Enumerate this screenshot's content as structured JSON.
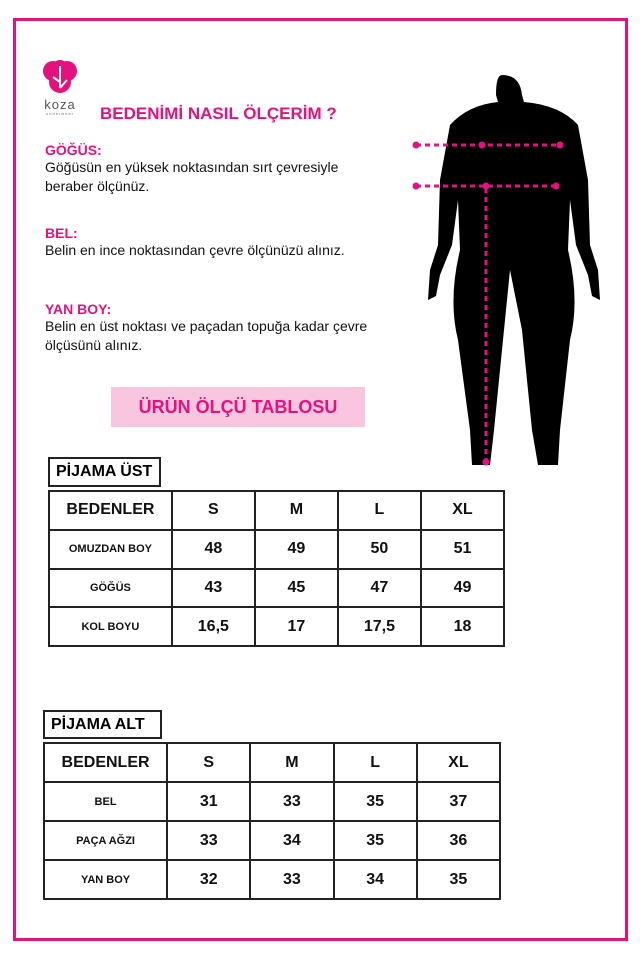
{
  "brand": {
    "name": "koza",
    "tagline": "underwear",
    "color": "#e4117f"
  },
  "title": "BEDENİMİ NASIL ÖLÇERİM ?",
  "sections": [
    {
      "heading": "GÖĞÜS:",
      "text": "Göğüsün en yüksek noktasından sırt çevresiyle beraber ölçünüz."
    },
    {
      "heading": "BEL:",
      "text": "Belin en ince noktasından çevre ölçünüzü alınız."
    },
    {
      "heading": "YAN BOY:",
      "text": "Belin en üst noktası ve paçadan topuğa kadar çevre ölçüsünü alınız."
    }
  ],
  "table_title": "ÜRÜN ÖLÇÜ TABLOSU",
  "tables": [
    {
      "label": "PİJAMA ÜST",
      "header": [
        "BEDENLER",
        "S",
        "M",
        "L",
        "XL"
      ],
      "rows": [
        [
          "OMUZDAN BOY",
          "48",
          "49",
          "50",
          "51"
        ],
        [
          "GÖĞÜS",
          "43",
          "45",
          "47",
          "49"
        ],
        [
          "KOL BOYU",
          "16,5",
          "17",
          "17,5",
          "18"
        ]
      ]
    },
    {
      "label": "PİJAMA ALT",
      "header": [
        "BEDENLER",
        "S",
        "M",
        "L",
        "XL"
      ],
      "rows": [
        [
          "BEL",
          "31",
          "33",
          "35",
          "37"
        ],
        [
          "PAÇA AĞZI",
          "33",
          "34",
          "35",
          "36"
        ],
        [
          "YAN BOY",
          "32",
          "33",
          "34",
          "35"
        ]
      ]
    }
  ]
}
